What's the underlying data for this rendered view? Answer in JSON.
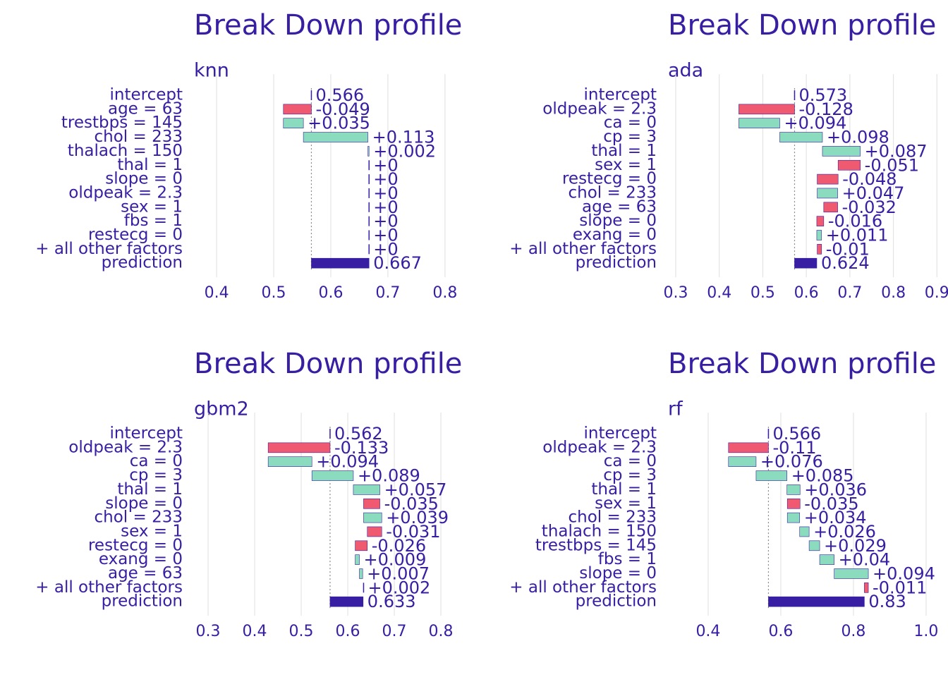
{
  "chart_data": [
    {
      "type": "waterfall",
      "title": "Break Down profile",
      "subtitle": "knn",
      "categories": [
        "intercept",
        "age = 63",
        "trestbps = 145",
        "chol = 233",
        "thalach = 150",
        "thal = 1",
        "slope = 0",
        "oldpeak = 2.3",
        "sex = 1",
        "fbs = 1",
        "restecg = 0",
        "+ all other factors",
        "prediction"
      ],
      "values": [
        0.566,
        -0.049,
        0.035,
        0.113,
        0.002,
        0,
        0,
        0,
        0,
        0,
        0,
        0,
        0.667
      ],
      "value_labels": [
        "0.566",
        "-0.049",
        "+0.035",
        "+0.113",
        "+0.002",
        "+0",
        "+0",
        "+0",
        "+0",
        "+0",
        "+0",
        "+0",
        "0.667"
      ],
      "xlim": [
        0.348,
        0.836
      ],
      "xticks": [
        0.4,
        0.5,
        0.6,
        0.7,
        0.8
      ],
      "grid": true,
      "positive_color": "#8bdcbe",
      "negative_color": "#f05a71",
      "total_color": "#371ea3"
    },
    {
      "type": "waterfall",
      "title": "Break Down profile",
      "subtitle": "ada",
      "categories": [
        "intercept",
        "oldpeak = 2.3",
        "ca = 0",
        "cp = 3",
        "thal = 1",
        "sex = 1",
        "restecg = 0",
        "chol = 233",
        "age = 63",
        "slope = 0",
        "exang = 0",
        "+ all other factors",
        "prediction"
      ],
      "values": [
        0.573,
        -0.128,
        0.094,
        0.098,
        0.087,
        -0.051,
        -0.048,
        0.047,
        -0.032,
        -0.016,
        0.011,
        -0.01,
        0.624
      ],
      "value_labels": [
        "0.573",
        "-0.128",
        "+0.094",
        "+0.098",
        "+0.087",
        "-0.051",
        "-0.048",
        "+0.047",
        "-0.032",
        "-0.016",
        "+0.011",
        "-0.01",
        "0.624"
      ],
      "xlim": [
        0.266,
        0.906
      ],
      "xticks": [
        0.3,
        0.4,
        0.5,
        0.6,
        0.7,
        0.8,
        0.9
      ],
      "grid": true,
      "positive_color": "#8bdcbe",
      "negative_color": "#f05a71",
      "total_color": "#371ea3"
    },
    {
      "type": "waterfall",
      "title": "Break Down profile",
      "subtitle": "gbm2",
      "categories": [
        "intercept",
        "oldpeak = 2.3",
        "ca = 0",
        "cp = 3",
        "thal = 1",
        "slope = 0",
        "chol = 233",
        "sex = 1",
        "restecg = 0",
        "exang = 0",
        "age = 63",
        "+ all other factors",
        "prediction"
      ],
      "values": [
        0.562,
        -0.133,
        0.094,
        0.089,
        0.057,
        -0.035,
        0.039,
        -0.031,
        -0.026,
        0.009,
        0.007,
        0.002,
        0.633
      ],
      "value_labels": [
        "0.562",
        "-0.133",
        "+0.094",
        "+0.089",
        "+0.057",
        "-0.035",
        "+0.039",
        "-0.031",
        "-0.026",
        "+0.009",
        "+0.007",
        "+0.002",
        "0.633"
      ],
      "xlim": [
        0.2545,
        0.853
      ],
      "xticks": [
        0.3,
        0.4,
        0.5,
        0.6,
        0.7,
        0.8
      ],
      "grid": true,
      "positive_color": "#8bdcbe",
      "negative_color": "#f05a71",
      "total_color": "#371ea3"
    },
    {
      "type": "waterfall",
      "title": "Break Down profile",
      "subtitle": "rf",
      "categories": [
        "intercept",
        "oldpeak = 2.3",
        "ca = 0",
        "cp = 3",
        "thal = 1",
        "sex = 1",
        "chol = 233",
        "thalach = 150",
        "trestbps = 145",
        "fbs = 1",
        "slope = 0",
        "+ all other factors",
        "prediction"
      ],
      "values": [
        0.566,
        -0.11,
        0.076,
        0.085,
        0.036,
        -0.035,
        0.034,
        0.026,
        0.029,
        0.04,
        0.094,
        -0.011,
        0.83
      ],
      "value_labels": [
        "0.566",
        "-0.11",
        "+0.076",
        "+0.085",
        "+0.036",
        "-0.035",
        "+0.034",
        "+0.026",
        "+0.029",
        "+0.04",
        "+0.094",
        "-0.011",
        "0.83"
      ],
      "xlim": [
        0.27,
        1.037
      ],
      "xticks": [
        0.4,
        0.6,
        0.8,
        {
          "value": 1,
          "label": "1.0"
        }
      ],
      "grid": true,
      "positive_color": "#8bdcbe",
      "negative_color": "#f05a71",
      "total_color": "#371ea3"
    }
  ]
}
